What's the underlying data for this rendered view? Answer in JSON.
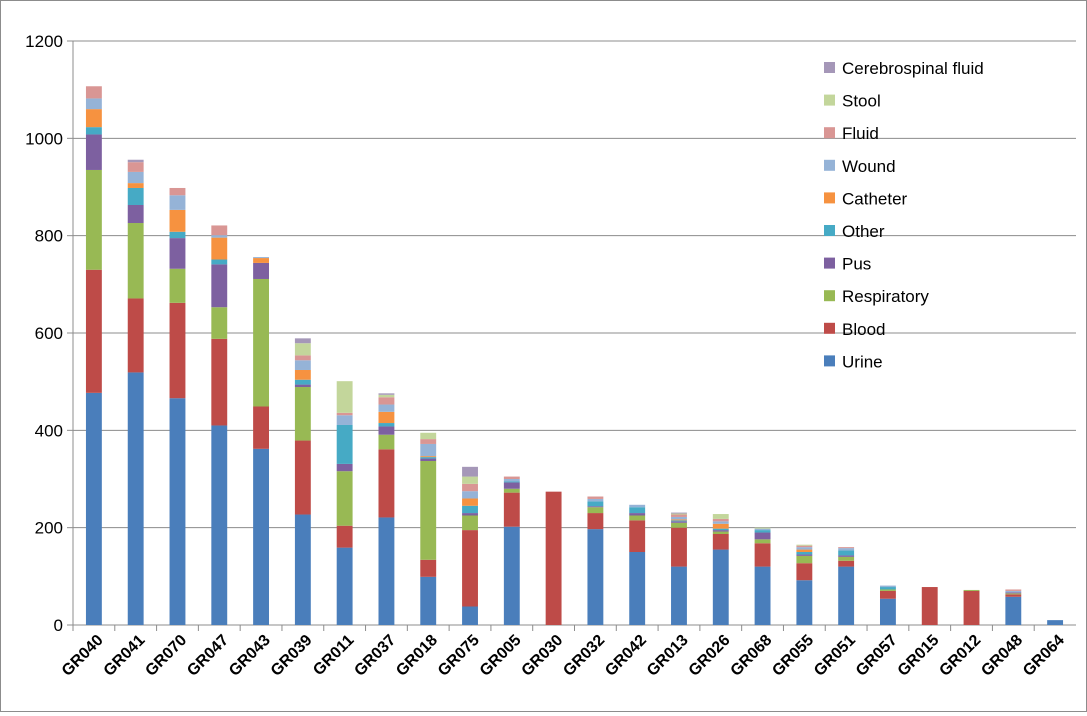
{
  "chart_data": {
    "type": "bar",
    "stacked": true,
    "title": "",
    "xlabel": "",
    "ylabel": "",
    "ylim": [
      0,
      1200
    ],
    "yticks": [
      0,
      200,
      400,
      600,
      800,
      1000,
      1200
    ],
    "grid": "horizontal",
    "legend_position": "right",
    "categories": [
      "GR040",
      "GR041",
      "GR070",
      "GR047",
      "GR043",
      "GR039",
      "GR011",
      "GR037",
      "GR018",
      "GR075",
      "GR005",
      "GR030",
      "GR032",
      "GR042",
      "GR013",
      "GR026",
      "GR068",
      "GR055",
      "GR051",
      "GR057",
      "GR015",
      "GR012",
      "GR048",
      "GR064"
    ],
    "series": [
      {
        "name": "Urine",
        "color": "#4a7ebb",
        "values": [
          477,
          519,
          466,
          410,
          362,
          227,
          159,
          221,
          99,
          38,
          202,
          0,
          197,
          150,
          120,
          155,
          120,
          92,
          120,
          54,
          0,
          0,
          58,
          10
        ]
      },
      {
        "name": "Blood",
        "color": "#be4b48",
        "values": [
          253,
          152,
          196,
          178,
          87,
          152,
          45,
          140,
          35,
          157,
          70,
          274,
          33,
          65,
          80,
          32,
          48,
          35,
          12,
          16,
          78,
          70,
          5,
          0
        ]
      },
      {
        "name": "Respiratory",
        "color": "#98b954",
        "values": [
          205,
          155,
          70,
          65,
          262,
          110,
          112,
          30,
          203,
          30,
          8,
          0,
          12,
          10,
          10,
          5,
          8,
          15,
          8,
          3,
          0,
          2,
          2,
          0
        ]
      },
      {
        "name": "Pus",
        "color": "#7d60a0",
        "values": [
          73,
          37,
          63,
          88,
          33,
          5,
          15,
          17,
          5,
          5,
          13,
          0,
          2,
          5,
          3,
          3,
          14,
          3,
          3,
          0,
          0,
          0,
          2,
          0
        ]
      },
      {
        "name": "Other",
        "color": "#46aac5",
        "values": [
          15,
          35,
          13,
          10,
          0,
          10,
          80,
          7,
          3,
          15,
          2,
          0,
          10,
          12,
          2,
          3,
          5,
          5,
          10,
          5,
          0,
          0,
          0,
          0
        ]
      },
      {
        "name": "Catheter",
        "color": "#f69240",
        "values": [
          37,
          10,
          45,
          45,
          10,
          20,
          0,
          23,
          2,
          15,
          0,
          0,
          0,
          0,
          2,
          10,
          0,
          5,
          0,
          0,
          0,
          0,
          0,
          0
        ]
      },
      {
        "name": "Wound",
        "color": "#95b3d7",
        "values": [
          22,
          23,
          30,
          5,
          2,
          20,
          20,
          15,
          25,
          15,
          5,
          0,
          5,
          5,
          5,
          5,
          3,
          5,
          5,
          3,
          0,
          0,
          3,
          0
        ]
      },
      {
        "name": "Fluid",
        "color": "#d99694",
        "values": [
          25,
          20,
          15,
          20,
          0,
          10,
          5,
          15,
          10,
          15,
          5,
          0,
          5,
          0,
          5,
          5,
          0,
          3,
          2,
          0,
          0,
          0,
          3,
          0
        ]
      },
      {
        "name": "Stool",
        "color": "#c3d69b",
        "values": [
          0,
          0,
          0,
          0,
          0,
          25,
          65,
          5,
          13,
          15,
          0,
          0,
          0,
          0,
          2,
          10,
          2,
          2,
          0,
          0,
          0,
          0,
          0,
          0
        ]
      },
      {
        "name": "Cerebrospinal fluid",
        "color": "#a597b8",
        "values": [
          0,
          5,
          0,
          0,
          0,
          10,
          0,
          3,
          0,
          20,
          0,
          0,
          0,
          0,
          2,
          0,
          0,
          0,
          0,
          0,
          0,
          0,
          0,
          0
        ]
      }
    ],
    "legend_order": [
      "Cerebrospinal fluid",
      "Stool",
      "Fluid",
      "Wound",
      "Catheter",
      "Other",
      "Pus",
      "Respiratory",
      "Blood",
      "Urine"
    ]
  }
}
